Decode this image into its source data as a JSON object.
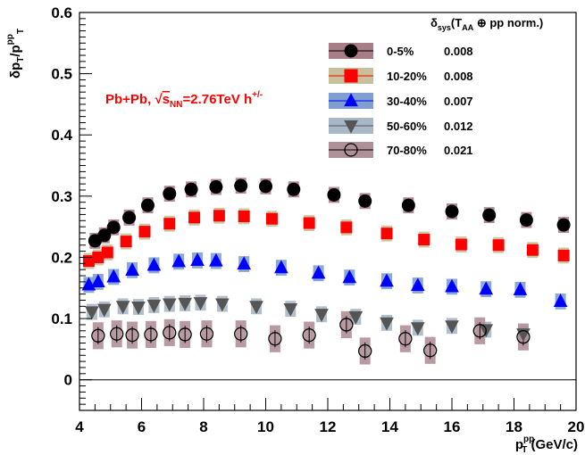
{
  "chart_data": {
    "type": "scatter",
    "title": "",
    "ylabel": {
      "base": "δp",
      "sub1": "T",
      "mid": "/p",
      "sup": "pp",
      "sub2": "T"
    },
    "xlabel": {
      "base": "p",
      "sup": "pp",
      "sub": "T",
      "unit": " (GeV/c)"
    },
    "xlim": [
      4,
      20
    ],
    "ylim": [
      -0.05,
      0.6
    ],
    "x_ticks": [
      4,
      6,
      8,
      10,
      12,
      14,
      16,
      18,
      20
    ],
    "y_ticks": [
      0,
      0.1,
      0.2,
      0.3,
      0.4,
      0.5,
      0.6
    ],
    "y_tick_labels": [
      "0",
      "0.1",
      "0.2",
      "0.3",
      "0.4",
      "0.5",
      "0.6"
    ],
    "zero_line": true,
    "annotation": {
      "prefix": "Pb+Pb, ",
      "sqrt": "√",
      "s": "s",
      "sub": "NN",
      "energy": "=2.76TeV h",
      "sup": "+/-"
    },
    "legend_header": {
      "delta": "δ",
      "sub_sys": "sys",
      "open": "(T",
      "sub_aa": "AA",
      "rest": " ⊕ pp norm.)"
    },
    "legend_position": "top-right",
    "series": [
      {
        "name": "0-5%",
        "sys_norm": "0.008",
        "marker": "circle",
        "filled": true,
        "color": "#000000",
        "band_color": "#a87d88",
        "x": [
          4.5,
          4.8,
          5.1,
          5.6,
          6.2,
          6.9,
          7.6,
          8.4,
          9.2,
          10.0,
          10.9,
          12.2,
          13.2,
          14.6,
          16.0,
          17.2,
          18.4,
          19.6
        ],
        "y": [
          0.227,
          0.236,
          0.249,
          0.265,
          0.285,
          0.304,
          0.311,
          0.315,
          0.317,
          0.316,
          0.311,
          0.302,
          0.292,
          0.285,
          0.275,
          0.269,
          0.261,
          0.253
        ]
      },
      {
        "name": "10-20%",
        "sys_norm": "0.008",
        "marker": "square",
        "filled": true,
        "color": "#ff0000",
        "band_color": "#c8c09a",
        "x": [
          4.3,
          4.6,
          4.9,
          5.5,
          6.1,
          6.9,
          7.7,
          8.5,
          9.3,
          10.2,
          11.4,
          12.6,
          13.9,
          15.1,
          16.3,
          17.5,
          18.6,
          19.6
        ],
        "y": [
          0.194,
          0.2,
          0.208,
          0.226,
          0.242,
          0.255,
          0.265,
          0.268,
          0.267,
          0.263,
          0.256,
          0.249,
          0.239,
          0.229,
          0.221,
          0.22,
          0.212,
          0.203
        ]
      },
      {
        "name": "30-40%",
        "sys_norm": "0.007",
        "marker": "triangle-up",
        "filled": true,
        "color": "#0000ff",
        "band_color": "#7f9fd0",
        "x": [
          4.3,
          4.6,
          5.1,
          5.7,
          6.4,
          7.2,
          7.8,
          8.4,
          9.3,
          10.5,
          11.7,
          12.7,
          13.9,
          14.9,
          16.0,
          17.1,
          18.2,
          19.5
        ],
        "y": [
          0.155,
          0.16,
          0.168,
          0.179,
          0.187,
          0.193,
          0.195,
          0.194,
          0.189,
          0.183,
          0.174,
          0.167,
          0.161,
          0.154,
          0.152,
          0.148,
          0.147,
          0.128
        ]
      },
      {
        "name": "50-60%",
        "sys_norm": "0.012",
        "marker": "triangle-down",
        "filled": true,
        "color": "#555555",
        "band_color": "#a9b8c6",
        "x": [
          4.4,
          4.8,
          5.4,
          5.9,
          6.4,
          6.9,
          7.4,
          7.9,
          8.6,
          9.7,
          10.8,
          11.8,
          12.9,
          13.9,
          14.9,
          16.0,
          17.1,
          18.3
        ],
        "y": [
          0.111,
          0.115,
          0.12,
          0.119,
          0.122,
          0.124,
          0.125,
          0.126,
          0.124,
          0.12,
          0.116,
          0.107,
          0.103,
          0.093,
          0.085,
          0.088,
          0.082,
          0.075
        ]
      },
      {
        "name": "70-80%",
        "sys_norm": "0.021",
        "marker": "circle",
        "filled": false,
        "color": "#000000",
        "band_color": "#b09098",
        "x": [
          4.6,
          5.2,
          5.7,
          6.3,
          6.9,
          7.4,
          8.1,
          9.2,
          10.3,
          11.4,
          12.6,
          13.2,
          14.5,
          15.3,
          16.9,
          18.3
        ],
        "y": [
          0.072,
          0.075,
          0.073,
          0.074,
          0.077,
          0.074,
          0.075,
          0.075,
          0.067,
          0.073,
          0.09,
          0.047,
          0.067,
          0.048,
          0.08,
          0.07
        ]
      }
    ]
  }
}
